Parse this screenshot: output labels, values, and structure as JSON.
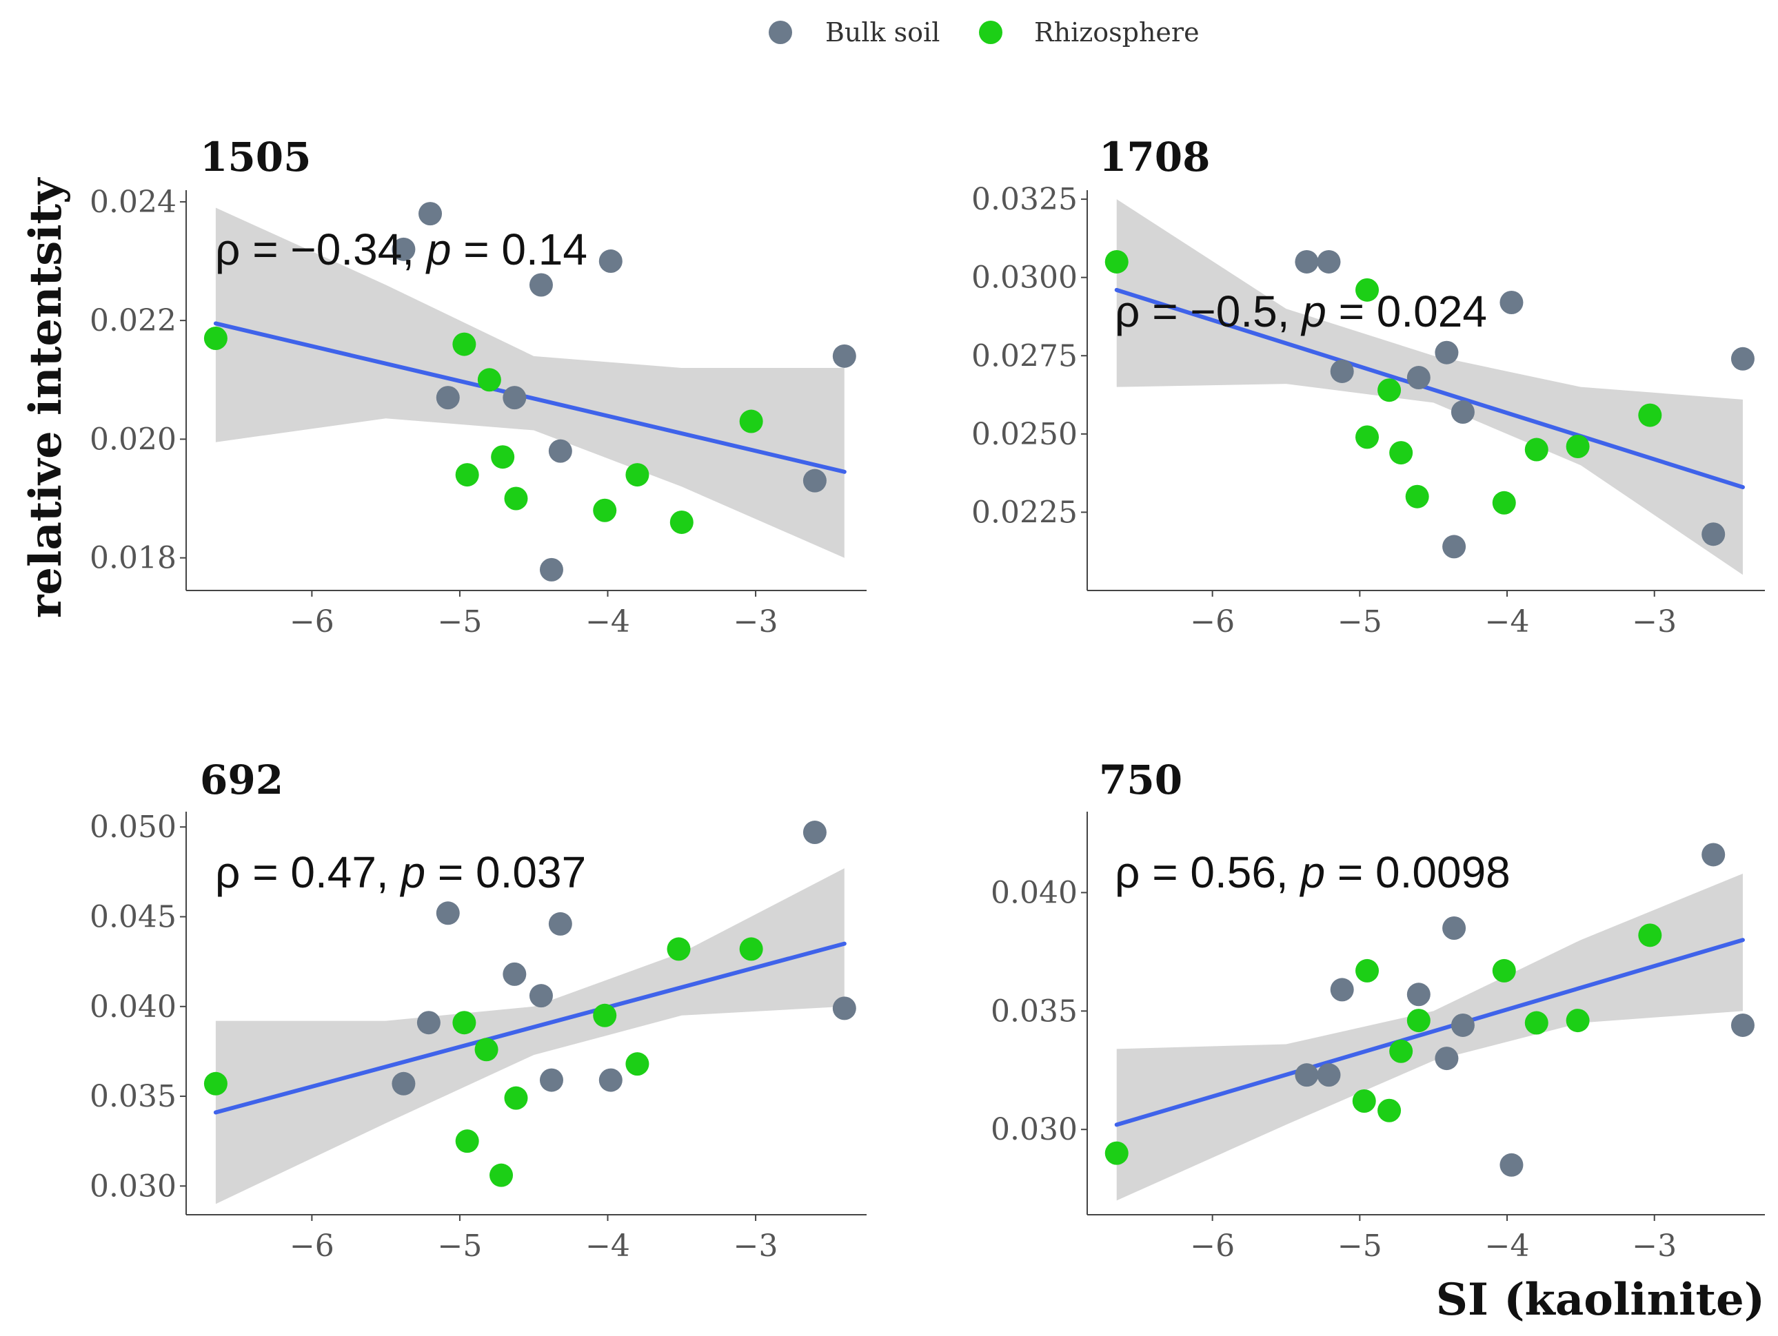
{
  "legend": {
    "items": [
      {
        "label": "Bulk soil",
        "color": "#6b7a8b"
      },
      {
        "label": "Rhizosphere",
        "color": "#1ccf16"
      }
    ],
    "position": "top-center"
  },
  "axis_labels": {
    "y": "relative intentsity",
    "x": "SI (kaolinite)"
  },
  "colors": {
    "fit_line": "#3f63ea",
    "ci_band": "#d6d6d6",
    "axis": "#444444",
    "tick_text": "#555555"
  },
  "chart_data": [
    {
      "type": "scatter",
      "title": "1505",
      "annotation": {
        "rho": "ρ = −0.34, ",
        "p_label": "p",
        "p_value": " = 0.14"
      },
      "xlim": [
        -6.85,
        -2.25
      ],
      "ylim": [
        0.01745,
        0.02415
      ],
      "xticks": [
        -6,
        -5,
        -4,
        -3
      ],
      "xtick_labels": [
        "−6",
        "−5",
        "−4",
        "−3"
      ],
      "yticks": [
        0.018,
        0.02,
        0.022,
        0.024
      ],
      "ytick_labels": [
        "0.018",
        "0.020",
        "0.022",
        "0.024"
      ],
      "series": [
        {
          "name": "Bulk soil",
          "points": [
            [
              -5.38,
              0.0232
            ],
            [
              -5.2,
              0.0238
            ],
            [
              -4.45,
              0.0226
            ],
            [
              -3.98,
              0.023
            ],
            [
              -2.4,
              0.0214
            ],
            [
              -5.08,
              0.0207
            ],
            [
              -4.63,
              0.0207
            ],
            [
              -4.32,
              0.0198
            ],
            [
              -2.6,
              0.0193
            ],
            [
              -4.38,
              0.0178
            ]
          ]
        },
        {
          "name": "Rhizosphere",
          "points": [
            [
              -6.65,
              0.0217
            ],
            [
              -4.97,
              0.0216
            ],
            [
              -4.8,
              0.021
            ],
            [
              -3.03,
              0.0203
            ],
            [
              -4.95,
              0.0194
            ],
            [
              -4.71,
              0.0197
            ],
            [
              -4.62,
              0.019
            ],
            [
              -3.8,
              0.0194
            ],
            [
              -4.02,
              0.0188
            ],
            [
              -3.5,
              0.0186
            ]
          ]
        }
      ],
      "fit": {
        "x": [
          -6.65,
          -2.4
        ],
        "y": [
          0.02195,
          0.01945
        ]
      },
      "ci": {
        "x": [
          -6.65,
          -5.5,
          -4.5,
          -3.5,
          -2.4
        ],
        "lower": [
          0.01995,
          0.02035,
          0.02015,
          0.0192,
          0.018
        ],
        "upper": [
          0.0239,
          0.0226,
          0.0214,
          0.0212,
          0.0212
        ]
      }
    },
    {
      "type": "scatter",
      "title": "1708",
      "annotation": {
        "rho": "ρ = −0.5, ",
        "p_label": "p",
        "p_value": " = 0.024"
      },
      "xlim": [
        -6.85,
        -2.25
      ],
      "ylim": [
        0.02,
        0.0327
      ],
      "xticks": [
        -6,
        -5,
        -4,
        -3
      ],
      "xtick_labels": [
        "−6",
        "−5",
        "−4",
        "−3"
      ],
      "yticks": [
        0.0225,
        0.025,
        0.0275,
        0.03,
        0.0325
      ],
      "ytick_labels": [
        "0.0225",
        "0.0250",
        "0.0275",
        "0.0300",
        "0.0325"
      ],
      "series": [
        {
          "name": "Bulk soil",
          "points": [
            [
              -5.36,
              0.0305
            ],
            [
              -5.21,
              0.0305
            ],
            [
              -3.97,
              0.0292
            ],
            [
              -4.41,
              0.0276
            ],
            [
              -2.4,
              0.0274
            ],
            [
              -5.12,
              0.027
            ],
            [
              -4.6,
              0.0268
            ],
            [
              -4.3,
              0.0257
            ],
            [
              -2.6,
              0.0218
            ],
            [
              -4.36,
              0.0214
            ]
          ]
        },
        {
          "name": "Rhizosphere",
          "points": [
            [
              -6.65,
              0.0305
            ],
            [
              -4.95,
              0.0296
            ],
            [
              -4.8,
              0.0264
            ],
            [
              -3.03,
              0.0256
            ],
            [
              -4.95,
              0.0249
            ],
            [
              -4.72,
              0.0244
            ],
            [
              -4.61,
              0.023
            ],
            [
              -3.8,
              0.0245
            ],
            [
              -4.02,
              0.0228
            ],
            [
              -3.52,
              0.0246
            ]
          ]
        }
      ],
      "fit": {
        "x": [
          -6.65,
          -2.4
        ],
        "y": [
          0.0296,
          0.0233
        ]
      },
      "ci": {
        "x": [
          -6.65,
          -5.5,
          -4.5,
          -3.5,
          -2.4
        ],
        "lower": [
          0.0265,
          0.0266,
          0.026,
          0.024,
          0.0205
        ],
        "upper": [
          0.0325,
          0.029,
          0.0275,
          0.0265,
          0.0261
        ]
      }
    },
    {
      "type": "scatter",
      "title": "692",
      "annotation": {
        "rho": "ρ = 0.47, ",
        "p_label": "p",
        "p_value": " = 0.037"
      },
      "xlim": [
        -6.85,
        -2.25
      ],
      "ylim": [
        0.0284,
        0.0507
      ],
      "xticks": [
        -6,
        -5,
        -4,
        -3
      ],
      "xtick_labels": [
        "−6",
        "−5",
        "−4",
        "−3"
      ],
      "yticks": [
        0.03,
        0.035,
        0.04,
        0.045,
        0.05
      ],
      "ytick_labels": [
        "0.030",
        "0.035",
        "0.040",
        "0.045",
        "0.050"
      ],
      "series": [
        {
          "name": "Bulk soil",
          "points": [
            [
              -2.6,
              0.0497
            ],
            [
              -5.08,
              0.0452
            ],
            [
              -4.32,
              0.0446
            ],
            [
              -4.63,
              0.0418
            ],
            [
              -4.45,
              0.0406
            ],
            [
              -2.4,
              0.0399
            ],
            [
              -5.21,
              0.0391
            ],
            [
              -5.38,
              0.0357
            ],
            [
              -4.38,
              0.0359
            ],
            [
              -3.98,
              0.0359
            ]
          ]
        },
        {
          "name": "Rhizosphere",
          "points": [
            [
              -6.65,
              0.0357
            ],
            [
              -3.52,
              0.0432
            ],
            [
              -3.03,
              0.0432
            ],
            [
              -4.02,
              0.0395
            ],
            [
              -4.97,
              0.0391
            ],
            [
              -4.82,
              0.0376
            ],
            [
              -3.8,
              0.0368
            ],
            [
              -4.62,
              0.0349
            ],
            [
              -4.95,
              0.0325
            ],
            [
              -4.72,
              0.0306
            ]
          ]
        }
      ],
      "fit": {
        "x": [
          -6.65,
          -2.4
        ],
        "y": [
          0.0341,
          0.0435
        ]
      },
      "ci": {
        "x": [
          -6.65,
          -5.5,
          -4.5,
          -3.5,
          -2.4
        ],
        "lower": [
          0.029,
          0.0335,
          0.0373,
          0.0395,
          0.04
        ],
        "upper": [
          0.0392,
          0.0392,
          0.04,
          0.043,
          0.0477
        ]
      }
    },
    {
      "type": "scatter",
      "title": "750",
      "annotation": {
        "rho": "ρ = 0.56, ",
        "p_label": "p",
        "p_value": " = 0.0098"
      },
      "xlim": [
        -6.85,
        -2.25
      ],
      "ylim": [
        0.0264,
        0.0433
      ],
      "xticks": [
        -6,
        -5,
        -4,
        -3
      ],
      "xtick_labels": [
        "−6",
        "−5",
        "−4",
        "−3"
      ],
      "yticks": [
        0.03,
        0.035,
        0.04
      ],
      "ytick_labels": [
        "0.030",
        "0.035",
        "0.040"
      ],
      "series": [
        {
          "name": "Bulk soil",
          "points": [
            [
              -2.6,
              0.0416
            ],
            [
              -4.36,
              0.0385
            ],
            [
              -5.12,
              0.0359
            ],
            [
              -4.6,
              0.0357
            ],
            [
              -4.3,
              0.0344
            ],
            [
              -2.4,
              0.0344
            ],
            [
              -4.41,
              0.033
            ],
            [
              -5.36,
              0.0323
            ],
            [
              -5.21,
              0.0323
            ],
            [
              -3.97,
              0.0285
            ]
          ]
        },
        {
          "name": "Rhizosphere",
          "points": [
            [
              -6.65,
              0.029
            ],
            [
              -3.03,
              0.0382
            ],
            [
              -4.95,
              0.0367
            ],
            [
              -4.02,
              0.0367
            ],
            [
              -4.6,
              0.0346
            ],
            [
              -3.8,
              0.0345
            ],
            [
              -3.52,
              0.0346
            ],
            [
              -4.72,
              0.0333
            ],
            [
              -4.97,
              0.0312
            ],
            [
              -4.8,
              0.0308
            ]
          ]
        }
      ],
      "fit": {
        "x": [
          -6.65,
          -2.4
        ],
        "y": [
          0.0302,
          0.038
        ]
      },
      "ci": {
        "x": [
          -6.65,
          -5.5,
          -4.5,
          -3.5,
          -2.4
        ],
        "lower": [
          0.027,
          0.0302,
          0.0329,
          0.0345,
          0.035
        ],
        "upper": [
          0.0334,
          0.0336,
          0.035,
          0.038,
          0.0408
        ]
      }
    }
  ]
}
